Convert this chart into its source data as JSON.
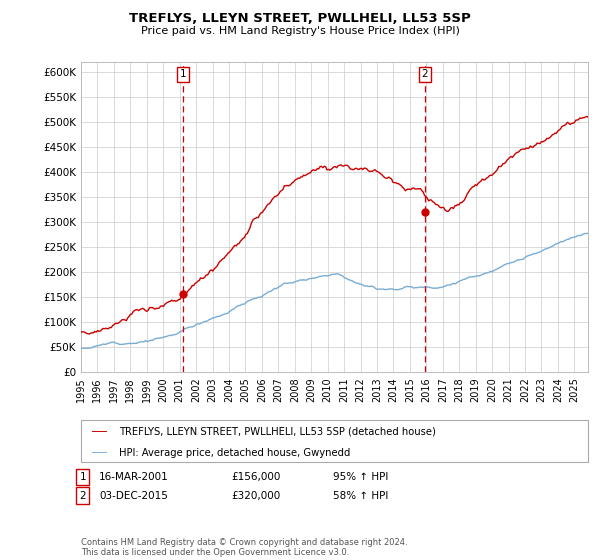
{
  "title": "TREFLYS, LLEYN STREET, PWLLHELI, LL53 5SP",
  "subtitle": "Price paid vs. HM Land Registry's House Price Index (HPI)",
  "ylim": [
    0,
    620000
  ],
  "yticks": [
    0,
    50000,
    100000,
    150000,
    200000,
    250000,
    300000,
    350000,
    400000,
    450000,
    500000,
    550000,
    600000
  ],
  "ytick_labels": [
    "£0",
    "£50K",
    "£100K",
    "£150K",
    "£200K",
    "£250K",
    "£300K",
    "£350K",
    "£400K",
    "£450K",
    "£500K",
    "£550K",
    "£600K"
  ],
  "xlim_start": 1995.0,
  "xlim_end": 2025.83,
  "sale1_x": 2001.21,
  "sale1_y": 156000,
  "sale1_label": "1",
  "sale1_date": "16-MAR-2001",
  "sale1_price": "£156,000",
  "sale1_hpi": "95% ↑ HPI",
  "sale2_x": 2015.92,
  "sale2_y": 320000,
  "sale2_label": "2",
  "sale2_date": "03-DEC-2015",
  "sale2_price": "£320,000",
  "sale2_hpi": "58% ↑ HPI",
  "line1_color": "#cc0000",
  "line2_color": "#7aadd4",
  "vline_color": "#cc0000",
  "legend_line1": "TREFLYS, LLEYN STREET, PWLLHELI, LL53 5SP (detached house)",
  "legend_line2": "HPI: Average price, detached house, Gwynedd",
  "footer": "Contains HM Land Registry data © Crown copyright and database right 2024.\nThis data is licensed under the Open Government Licence v3.0.",
  "background_color": "#ffffff",
  "grid_color": "#cccccc"
}
